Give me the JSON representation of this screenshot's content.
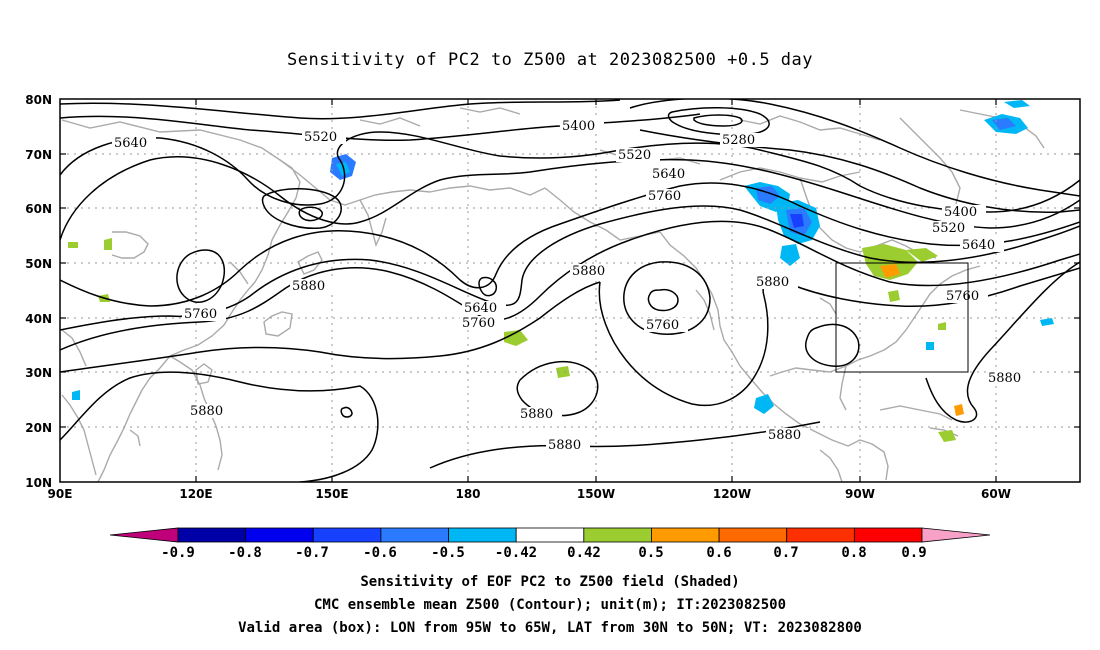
{
  "title": "Sensitivity of PC2 to Z500 at 2023082500 +0.5 day",
  "lat_labels": [
    "80N",
    "70N",
    "60N",
    "50N",
    "40N",
    "30N",
    "20N",
    "10N"
  ],
  "lon_labels": [
    "90E",
    "120E",
    "150E",
    "180",
    "150W",
    "120W",
    "90W",
    "60W"
  ],
  "contour_labels": [
    "5640",
    "5520",
    "5400",
    "5280",
    "5520",
    "5640",
    "5760",
    "5400",
    "5520",
    "5640",
    "5880",
    "5880",
    "5640",
    "5760",
    "5760",
    "5880",
    "5760",
    "5760",
    "5880",
    "5880",
    "5880",
    "5880",
    "5880",
    "5880"
  ],
  "colorbar": {
    "labels": [
      "-0.9",
      "-0.8",
      "-0.7",
      "-0.6",
      "-0.5",
      "-0.42",
      "0.42",
      "0.5",
      "0.6",
      "0.7",
      "0.8",
      "0.9"
    ],
    "colors": [
      "#0000a8",
      "#0000ee",
      "#1840ff",
      "#2a7bff",
      "#00b7f5",
      "#ffffff",
      "#9bcc30",
      "#ff9b00",
      "#ff6a00",
      "#ff3000",
      "#ff0000"
    ],
    "left_arrow_color": "#c0007a",
    "right_arrow_color": "#f7a0c8"
  },
  "captions": [
    "Sensitivity of EOF PC2 to Z500 field (Shaded)",
    "CMC ensemble mean Z500 (Contour); unit(m); IT:2023082500",
    "Valid area (box): LON from 95W to 65W, LAT from 30N to 50N; VT: 2023082800"
  ],
  "valid_box": {
    "lon_min": "95W",
    "lon_max": "65W",
    "lat_min": "30N",
    "lat_max": "50N"
  }
}
